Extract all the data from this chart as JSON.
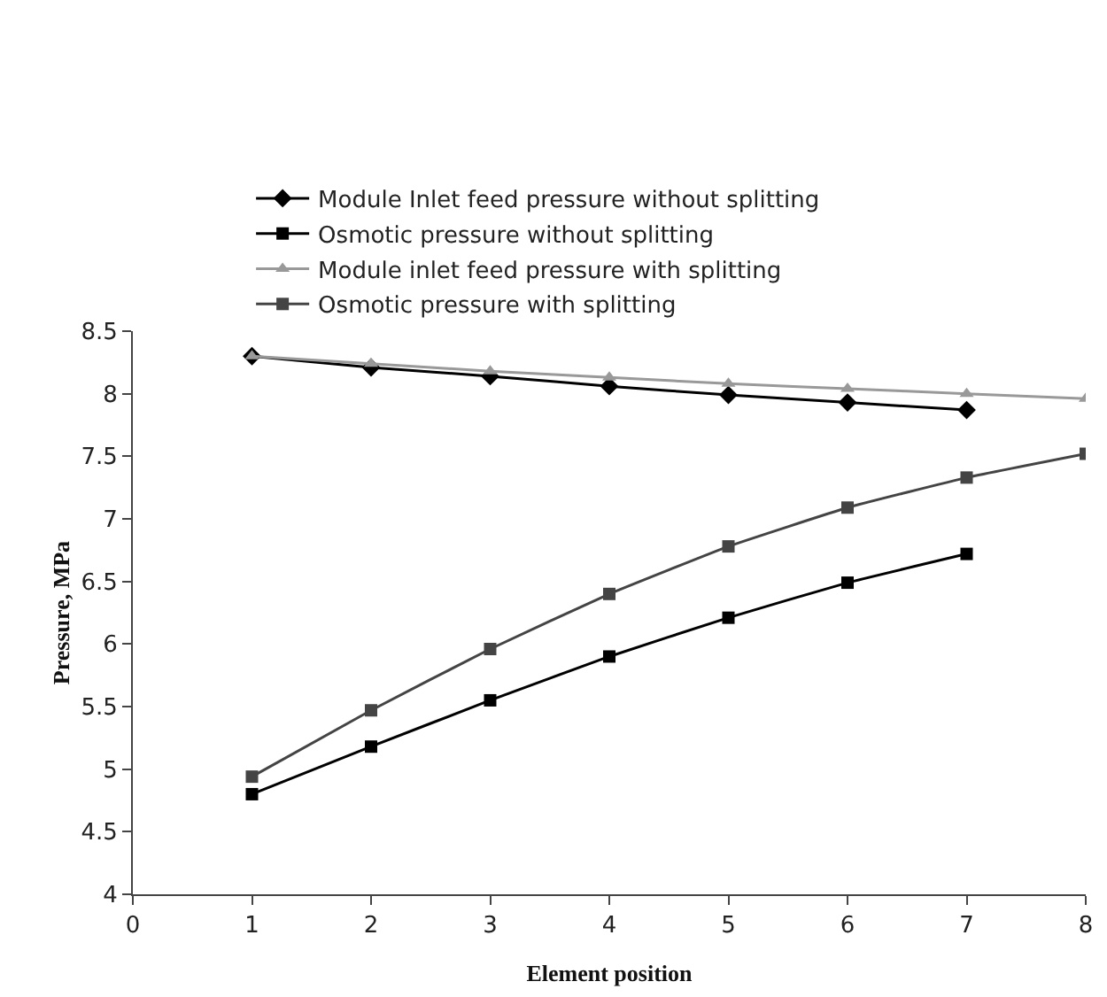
{
  "chart_data": {
    "type": "line",
    "xlabel": "Element position",
    "ylabel": "Pressure, MPa",
    "x": [
      1,
      2,
      3,
      4,
      5,
      6,
      7,
      8
    ],
    "series": [
      {
        "name": "Module Inlet feed pressure without splitting",
        "color": "#000000",
        "marker": "diamond",
        "values": [
          8.3,
          8.21,
          8.14,
          8.06,
          7.99,
          7.93,
          7.87,
          null
        ]
      },
      {
        "name": "Osmotic pressure without splitting",
        "color": "#000000",
        "marker": "square",
        "values": [
          4.8,
          5.18,
          5.55,
          5.9,
          6.21,
          6.49,
          6.72,
          null
        ]
      },
      {
        "name": "Module inlet feed pressure with splitting",
        "color": "#999999",
        "marker": "triangle",
        "values": [
          8.3,
          8.24,
          8.18,
          8.13,
          8.08,
          8.04,
          8.0,
          7.96
        ]
      },
      {
        "name": "Osmotic pressure with splitting",
        "color": "#444444",
        "marker": "square",
        "values": [
          4.94,
          5.47,
          5.96,
          6.4,
          6.78,
          7.09,
          7.33,
          7.52
        ]
      }
    ],
    "xlim": [
      0,
      8
    ],
    "xticks": [
      0,
      1,
      2,
      3,
      4,
      5,
      6,
      7,
      8
    ],
    "ylim": [
      4,
      8.5
    ],
    "yticks": [
      4,
      4.5,
      5,
      5.5,
      6,
      6.5,
      7,
      7.5,
      8,
      8.5
    ],
    "grid": false,
    "legend": "top"
  }
}
